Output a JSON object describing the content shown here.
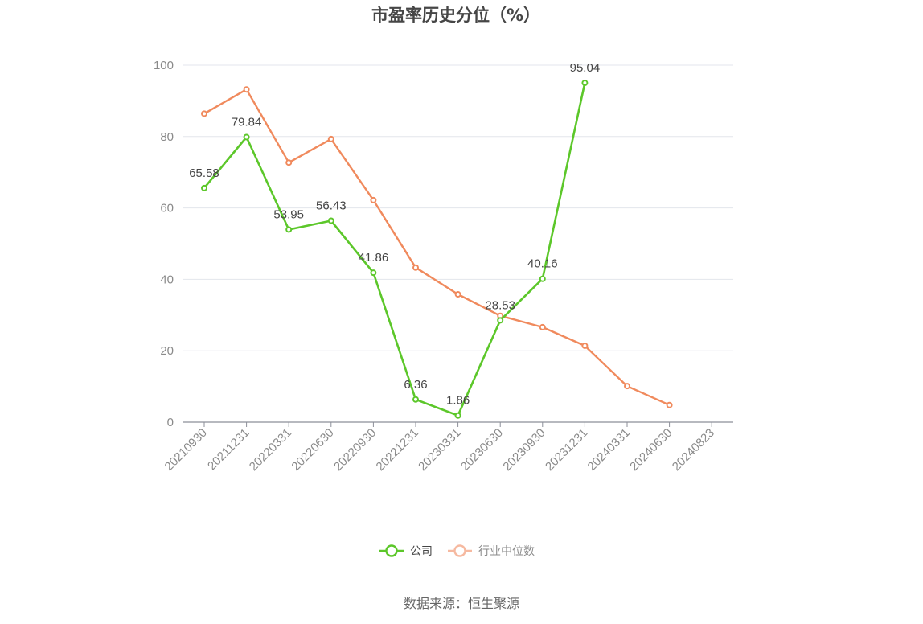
{
  "chart_data": {
    "type": "line",
    "title": "市盈率历史分位（%）",
    "categories": [
      "20210930",
      "20211231",
      "20220331",
      "20220630",
      "20220930",
      "20221231",
      "20230331",
      "20230630",
      "20230930",
      "20231231",
      "20240331",
      "20240630",
      "20240823"
    ],
    "ylim": [
      0,
      100
    ],
    "yticks": [
      0,
      20,
      40,
      60,
      80,
      100
    ],
    "grid": true,
    "legend_position": "bottom-center",
    "series": [
      {
        "name": "公司",
        "color": "#5cc72a",
        "values": [
          65.58,
          79.84,
          53.95,
          56.43,
          41.86,
          6.36,
          1.86,
          28.53,
          40.16,
          95.04,
          null,
          null,
          null
        ],
        "data_labels": [
          "65.58",
          "79.84",
          "53.95",
          "56.43",
          "41.86",
          "6.36",
          "1.86",
          "28.53",
          "40.16",
          "95.04",
          null,
          null,
          null
        ]
      },
      {
        "name": "行业中位数",
        "color": "#f08a5d",
        "values": [
          86.4,
          93.2,
          72.7,
          79.3,
          62.2,
          43.3,
          35.8,
          29.8,
          26.6,
          21.4,
          10.1,
          4.8,
          null
        ]
      }
    ]
  },
  "legend": {
    "items": [
      {
        "label": "公司",
        "color": "#5cc72a",
        "text_color": "#444444"
      },
      {
        "label": "行业中位数",
        "color": "#f6b9a0",
        "text_color": "#8a8a8a"
      }
    ]
  },
  "source": "数据来源：恒生聚源"
}
